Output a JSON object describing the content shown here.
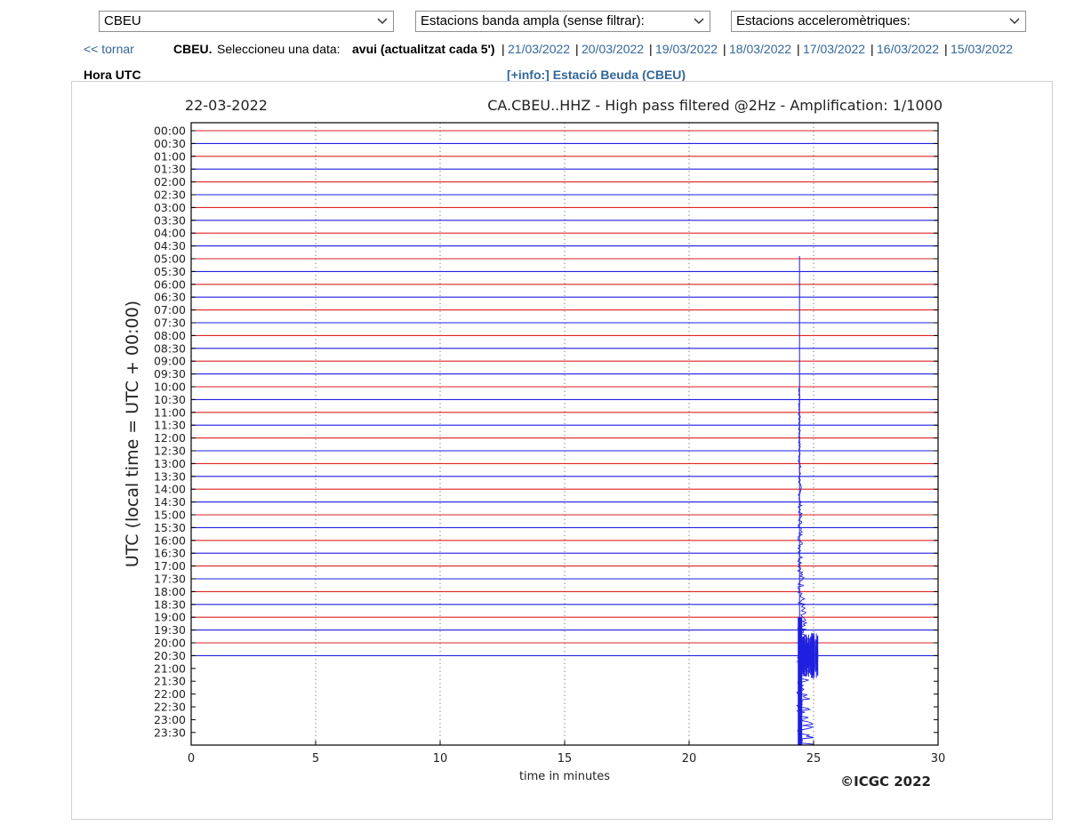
{
  "selects": {
    "station": "CBEU",
    "broadband": "Estacions banda ampla (sense filtrar):",
    "accel": "Estacions acceleromètriques:"
  },
  "nav": {
    "back": "<< tornar",
    "station_bold": "CBEU.",
    "prompt": "Seleccioneu una data:",
    "today": "avui (actualitzat cada 5')",
    "dates": [
      "21/03/2022",
      "20/03/2022",
      "19/03/2022",
      "18/03/2022",
      "17/03/2022",
      "16/03/2022",
      "15/03/2022"
    ],
    "separator": "|"
  },
  "hora_label": "Hora UTC",
  "info_link": "[+info:] Estació Beuda (CBEU)",
  "chart_data": {
    "type": "line",
    "title": "CA.CBEU..HHZ - High pass filtered @2Hz - Amplification: 1/1000",
    "date": "22-03-2022",
    "xlabel": "time in minutes",
    "ylabel": "UTC (local time = UTC + 00:00)",
    "xlim": [
      0,
      30
    ],
    "x_ticks": [
      0,
      5,
      10,
      15,
      20,
      25,
      30
    ],
    "y_ticks": [
      "00:00",
      "00:30",
      "01:00",
      "01:30",
      "02:00",
      "02:30",
      "03:00",
      "03:30",
      "04:00",
      "04:30",
      "05:00",
      "05:30",
      "06:00",
      "06:30",
      "07:00",
      "07:30",
      "08:00",
      "08:30",
      "09:00",
      "09:30",
      "10:00",
      "10:30",
      "11:00",
      "11:30",
      "12:00",
      "12:30",
      "13:00",
      "13:30",
      "14:00",
      "14:30",
      "15:00",
      "15:30",
      "16:00",
      "16:30",
      "17:00",
      "17:30",
      "18:00",
      "18:30",
      "19:00",
      "19:30",
      "20:00",
      "20:30",
      "21:00",
      "21:30",
      "22:00",
      "22:30",
      "23:00",
      "23:30"
    ],
    "trace_colors": [
      "#dd2222",
      "#1f1fe0"
    ],
    "traces_recorded_through": "20:30",
    "grid": "vertical dotted",
    "event": {
      "start_minute": 24.4,
      "end_minute": 25.1,
      "first_trace": "05:00",
      "largest_trace": "20:30"
    },
    "copyright": "©ICGC 2022"
  }
}
